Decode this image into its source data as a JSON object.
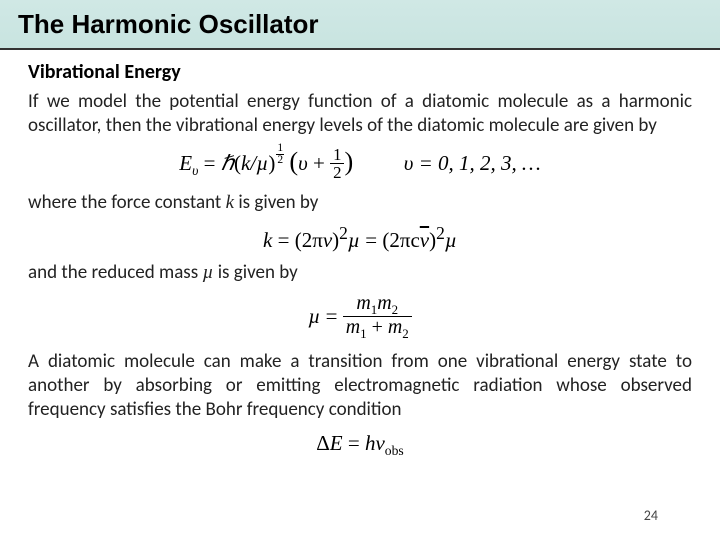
{
  "header": {
    "title": "The Harmonic Oscillator"
  },
  "section": {
    "heading": "Vibrational Energy"
  },
  "para1": "If we model the potential energy function of a diatomic molecule as a harmonic oscillator, then the vibrational energy levels of the diatomic molecule are given by",
  "para2a": "where the force constant ",
  "para2b": " is given by",
  "para3a": "and the reduced mass ",
  "para3b": " is given by",
  "para4": "A diatomic molecule can make a transition from one vibrational energy state to another by absorbing or emitting electromagnetic radiation whose observed frequency satisfies the Bohr frequency condition",
  "sym": {
    "k": "k",
    "mu": "µ",
    "Ev": "E",
    "vsub": "υ",
    "hbar": "ℏ",
    "kmu": "k/µ",
    "lp": "(",
    "rp": ")",
    "plus": " + ",
    "half_n": "1",
    "half_d": "2",
    "eq": " = ",
    "vseq": "υ = 0, 1, 2, 3, …",
    "twopi": "2π",
    "nu": "ν",
    "sq": "2",
    "c": "c",
    "nubar": "ν",
    "m1": "m",
    "m2": "m",
    "s1": "1",
    "s2": "2",
    "dE": "Δ",
    "E": "E",
    "h": "h",
    "obs": "obs"
  },
  "pageNumber": "24",
  "colors": {
    "headerGradTop": "#d0e8e5",
    "headerGradBottom": "#c8e4e0",
    "headerBorder": "#333333",
    "text": "#222222",
    "background": "#ffffff"
  }
}
